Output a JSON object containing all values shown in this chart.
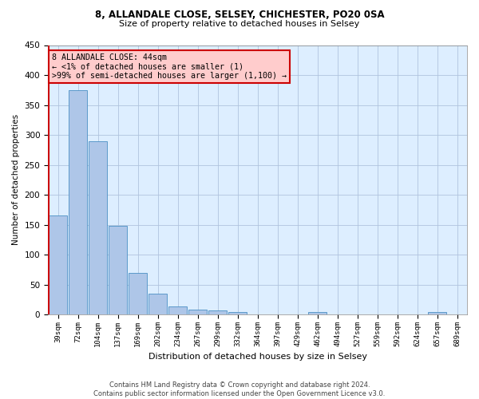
{
  "title1": "8, ALLANDALE CLOSE, SELSEY, CHICHESTER, PO20 0SA",
  "title2": "Size of property relative to detached houses in Selsey",
  "xlabel": "Distribution of detached houses by size in Selsey",
  "ylabel": "Number of detached properties",
  "categories": [
    "39sqm",
    "72sqm",
    "104sqm",
    "137sqm",
    "169sqm",
    "202sqm",
    "234sqm",
    "267sqm",
    "299sqm",
    "332sqm",
    "364sqm",
    "397sqm",
    "429sqm",
    "462sqm",
    "494sqm",
    "527sqm",
    "559sqm",
    "592sqm",
    "624sqm",
    "657sqm",
    "689sqm"
  ],
  "values": [
    165,
    375,
    290,
    148,
    70,
    35,
    14,
    8,
    7,
    4,
    0,
    0,
    0,
    4,
    0,
    0,
    0,
    0,
    0,
    4,
    0
  ],
  "bar_color": "#aec6e8",
  "bar_edge_color": "#4a90c4",
  "highlight_color": "#cc0000",
  "highlight_index": 0,
  "ylim": [
    0,
    450
  ],
  "yticks": [
    0,
    50,
    100,
    150,
    200,
    250,
    300,
    350,
    400,
    450
  ],
  "annotation_box_text": "8 ALLANDALE CLOSE: 44sqm\n← <1% of detached houses are smaller (1)\n>99% of semi-detached houses are larger (1,100) →",
  "annotation_box_color": "#ffcccc",
  "annotation_box_edge_color": "#cc0000",
  "footer1": "Contains HM Land Registry data © Crown copyright and database right 2024.",
  "footer2": "Contains public sector information licensed under the Open Government Licence v3.0.",
  "bg_color": "#ddeeff",
  "grid_color": "#b0c4de"
}
